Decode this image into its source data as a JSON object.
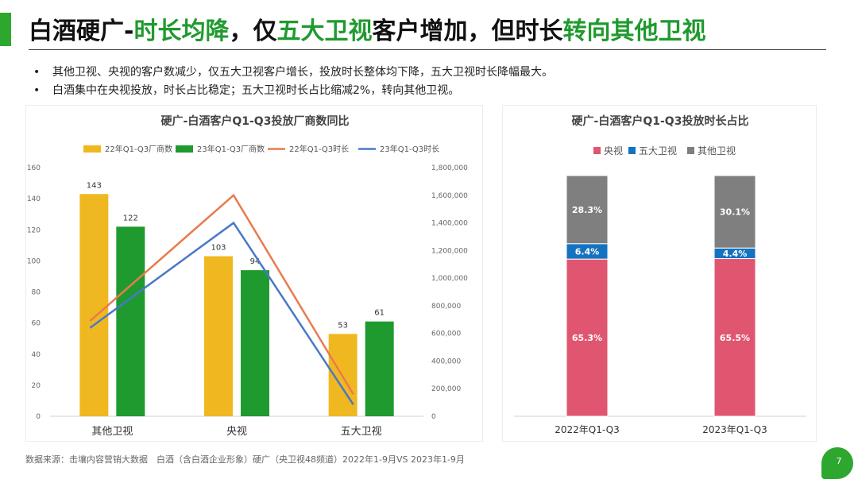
{
  "header": {
    "title_parts": [
      {
        "text": "白酒硬广-",
        "green": false
      },
      {
        "text": "时长均降",
        "green": true
      },
      {
        "text": "，仅",
        "green": false
      },
      {
        "text": "五大卫视",
        "green": true
      },
      {
        "text": "客户增加，但时长",
        "green": false
      },
      {
        "text": "转向其他卫视",
        "green": true
      }
    ]
  },
  "bullets": [
    "其他卫视、央视的客户数减少，仅五大卫视客户增长，投放时长整体均下降，五大卫视时长降幅最大。",
    "白酒集中在央视投放，时长占比稳定；五大卫视时长占比缩减2%，转向其他卫视。"
  ],
  "colors": {
    "bar22": "#f0b820",
    "bar23": "#1f9a2e",
    "line22": "#ea7a4e",
    "line23": "#4a78c8",
    "cctv": "#e05570",
    "top5": "#1473c0",
    "other": "#7f7f7f"
  },
  "chart_data": [
    {
      "type": "bar",
      "title": "硬广-白酒客户Q1-Q3投放厂商数同比",
      "categories": [
        "其他卫视",
        "央视",
        "五大卫视"
      ],
      "series": [
        {
          "name": "22年Q1-Q3厂商数",
          "kind": "bar",
          "axis": "left",
          "values": [
            143,
            103,
            53
          ]
        },
        {
          "name": "23年Q1-Q3厂商数",
          "kind": "bar",
          "axis": "left",
          "values": [
            122,
            94,
            61
          ]
        },
        {
          "name": "22年Q1-Q3时长",
          "kind": "line",
          "axis": "right",
          "values": [
            690000,
            1600000,
            160000
          ]
        },
        {
          "name": "23年Q1-Q3时长",
          "kind": "line",
          "axis": "right",
          "values": [
            640000,
            1400000,
            85000
          ]
        }
      ],
      "ylim": [
        0,
        160
      ],
      "yticks": [
        0,
        20,
        40,
        60,
        80,
        100,
        120,
        140,
        160
      ],
      "y2lim": [
        0,
        1800000
      ],
      "y2ticks": [
        "0",
        "200,000",
        "400,000",
        "600,000",
        "800,000",
        "1,000,000",
        "1,200,000",
        "1,400,000",
        "1,600,000",
        "1,800,000"
      ],
      "legend": "top"
    },
    {
      "type": "bar",
      "stacked": true,
      "title": "硬广-白酒客户Q1-Q3投放时长占比",
      "categories": [
        "2022年Q1-Q3",
        "2023年Q1-Q3"
      ],
      "series": [
        {
          "name": "央视",
          "values": [
            65.3,
            65.5
          ],
          "labels": [
            "65.3%",
            "65.5%"
          ]
        },
        {
          "name": "五大卫视",
          "values": [
            6.4,
            4.4
          ],
          "labels": [
            "6.4%",
            "4.4%"
          ]
        },
        {
          "name": "其他卫视",
          "values": [
            28.3,
            30.1
          ],
          "labels": [
            "28.3%",
            "30.1%"
          ]
        }
      ],
      "ylim": [
        0,
        100
      ],
      "legend": "top"
    }
  ],
  "footer": {
    "source": "数据来源：击壤内容营销大数据　白酒（含白酒企业形象）硬广（央卫视48频道）2022年1-9月VS 2023年1-9月",
    "page": "7"
  }
}
